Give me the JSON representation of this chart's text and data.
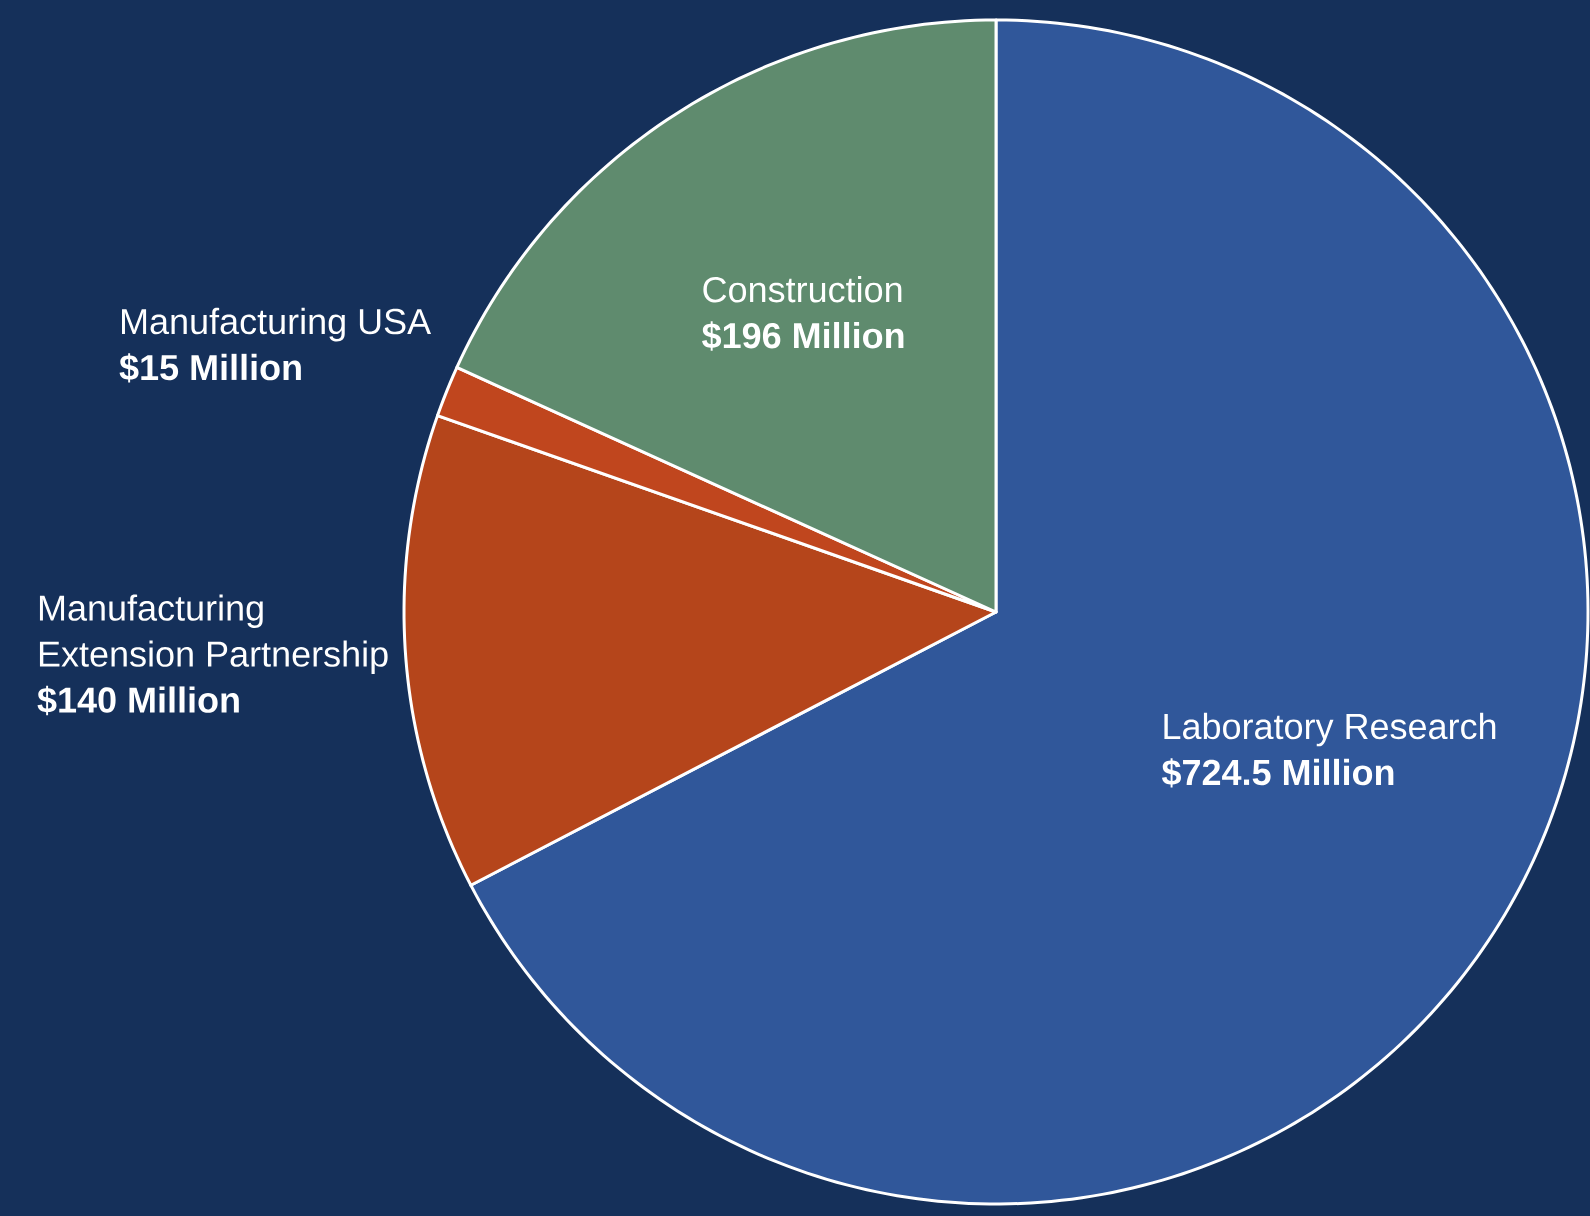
{
  "chart_data": {
    "type": "pie",
    "categories": [
      "Laboratory Research",
      "Manufacturing Extension Partnership",
      "Manufacturing USA",
      "Construction"
    ],
    "values": [
      724.5,
      140,
      15,
      196
    ],
    "value_labels": [
      "$724.5 Million",
      "$140 Million",
      "$15 Million",
      "$196 Million"
    ],
    "colors": [
      "#30579a",
      "#b5451b",
      "#c0461e",
      "#5f8b6e"
    ]
  }
}
